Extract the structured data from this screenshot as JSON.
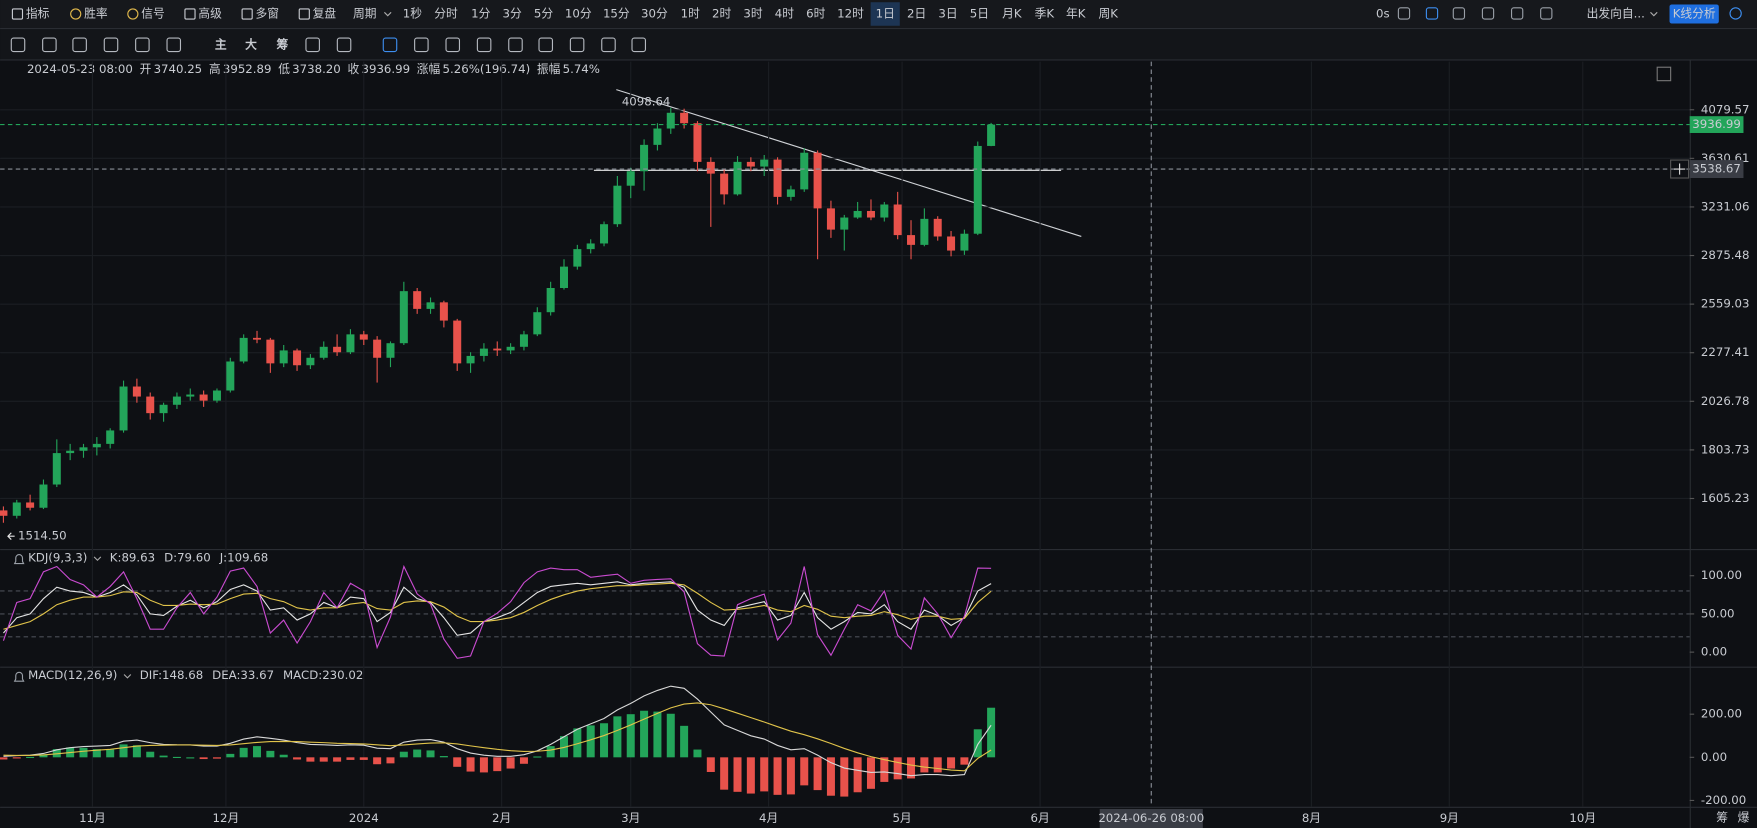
{
  "toolbar": {
    "left": [
      "指标",
      "胜率",
      "信号",
      "高级",
      "多窗",
      "复盘",
      "周期"
    ],
    "periods": [
      "1秒",
      "分时",
      "1分",
      "3分",
      "5分",
      "10分",
      "15分",
      "30分",
      "1时",
      "2时",
      "3时",
      "4时",
      "6时",
      "12时",
      "1日",
      "2日",
      "3日",
      "5日",
      "月K",
      "季K",
      "年K",
      "周K"
    ],
    "active_period": 14,
    "right": [
      "0s",
      "出发向自...",
      "K线分析"
    ],
    "drawing": [
      "主",
      "大",
      "筹"
    ],
    "corner": [
      "筹",
      "爆"
    ]
  },
  "info": {
    "time": "2024-05-23 08:00",
    "fields": [
      {
        "label": "开",
        "value": "3740.25"
      },
      {
        "label": "高",
        "value": "3952.89"
      },
      {
        "label": "低",
        "value": "3738.20"
      },
      {
        "label": "收",
        "value": "3936.99"
      },
      {
        "label": "涨幅",
        "value": "5.26%(196.74)"
      },
      {
        "label": "振幅",
        "value": "5.74%"
      }
    ]
  },
  "chart_data": [
    {
      "type": "candlestick",
      "log": true,
      "up_color": "#23a55a",
      "down_color": "#e8524b",
      "xlim": [
        -0.25,
        126.34
      ],
      "ylim": [
        1422,
        4579
      ],
      "yticks": [
        1605.23,
        1803.73,
        2026.78,
        2277.41,
        2559.03,
        2875.48,
        3231.06,
        3630.61,
        4079.57
      ],
      "xticks": [
        {
          "value": 6.67,
          "label": "11月"
        },
        {
          "value": 16.67,
          "label": "12月"
        },
        {
          "value": 27,
          "label": "2024"
        },
        {
          "value": 37.33,
          "label": "2月"
        },
        {
          "value": 47,
          "label": "3月"
        },
        {
          "value": 57.33,
          "label": "4月"
        },
        {
          "value": 67.33,
          "label": "5月"
        },
        {
          "value": 77.67,
          "label": "6月"
        },
        {
          "value": 98,
          "label": "8月"
        },
        {
          "value": 108.33,
          "label": "9月"
        },
        {
          "value": 118.33,
          "label": "10月"
        }
      ],
      "extreme_labels": {
        "high": "4098.64",
        "low": "1514.50"
      },
      "crosshair": {
        "x": 86,
        "y": 3538.67,
        "x_label": "2024-06-26 08:00"
      },
      "values": [
        [
          1560,
          1575,
          1514.5,
          1540
        ],
        [
          1540,
          1600,
          1530,
          1590
        ],
        [
          1590,
          1620,
          1560,
          1570
        ],
        [
          1570,
          1680,
          1565,
          1660
        ],
        [
          1660,
          1850,
          1650,
          1790
        ],
        [
          1790,
          1830,
          1760,
          1800
        ],
        [
          1800,
          1830,
          1770,
          1815
        ],
        [
          1815,
          1860,
          1780,
          1830
        ],
        [
          1830,
          1900,
          1810,
          1890
        ],
        [
          1890,
          2130,
          1880,
          2100
        ],
        [
          2100,
          2140,
          2020,
          2050
        ],
        [
          2050,
          2070,
          1940,
          1970
        ],
        [
          1970,
          2020,
          1930,
          2010
        ],
        [
          2010,
          2070,
          1990,
          2050
        ],
        [
          2050,
          2090,
          2030,
          2060
        ],
        [
          2060,
          2080,
          2000,
          2030
        ],
        [
          2030,
          2090,
          2020,
          2080
        ],
        [
          2080,
          2250,
          2070,
          2230
        ],
        [
          2230,
          2380,
          2220,
          2360
        ],
        [
          2360,
          2400,
          2330,
          2350
        ],
        [
          2350,
          2360,
          2170,
          2220
        ],
        [
          2220,
          2320,
          2200,
          2290
        ],
        [
          2290,
          2300,
          2180,
          2210
        ],
        [
          2210,
          2270,
          2190,
          2250
        ],
        [
          2250,
          2340,
          2240,
          2310
        ],
        [
          2310,
          2380,
          2260,
          2280
        ],
        [
          2280,
          2410,
          2270,
          2380
        ],
        [
          2380,
          2400,
          2320,
          2350
        ],
        [
          2350,
          2370,
          2120,
          2250
        ],
        [
          2250,
          2340,
          2200,
          2330
        ],
        [
          2330,
          2700,
          2320,
          2640
        ],
        [
          2640,
          2660,
          2500,
          2530
        ],
        [
          2530,
          2600,
          2500,
          2570
        ],
        [
          2570,
          2580,
          2420,
          2460
        ],
        [
          2460,
          2470,
          2180,
          2220
        ],
        [
          2220,
          2280,
          2170,
          2260
        ],
        [
          2260,
          2330,
          2230,
          2300
        ],
        [
          2300,
          2340,
          2260,
          2290
        ],
        [
          2290,
          2330,
          2270,
          2310
        ],
        [
          2310,
          2400,
          2290,
          2380
        ],
        [
          2380,
          2540,
          2370,
          2510
        ],
        [
          2510,
          2700,
          2490,
          2660
        ],
        [
          2660,
          2850,
          2650,
          2800
        ],
        [
          2800,
          2950,
          2780,
          2920
        ],
        [
          2920,
          2990,
          2890,
          2960
        ],
        [
          2960,
          3120,
          2940,
          3100
        ],
        [
          3100,
          3480,
          3080,
          3400
        ],
        [
          3400,
          3550,
          3300,
          3520
        ],
        [
          3520,
          3800,
          3360,
          3750
        ],
        [
          3750,
          3950,
          3700,
          3900
        ],
        [
          3900,
          4098.64,
          3850,
          4050
        ],
        [
          4050,
          4090,
          3900,
          3950
        ],
        [
          3950,
          3970,
          3520,
          3600
        ],
        [
          3600,
          3640,
          3080,
          3500
        ],
        [
          3500,
          3540,
          3250,
          3330
        ],
        [
          3330,
          3650,
          3320,
          3600
        ],
        [
          3600,
          3640,
          3520,
          3560
        ],
        [
          3560,
          3660,
          3480,
          3620
        ],
        [
          3620,
          3640,
          3250,
          3310
        ],
        [
          3310,
          3400,
          3280,
          3370
        ],
        [
          3370,
          3720,
          3350,
          3680
        ],
        [
          3680,
          3700,
          2850,
          3220
        ],
        [
          3220,
          3280,
          3000,
          3060
        ],
        [
          3060,
          3170,
          2910,
          3150
        ],
        [
          3150,
          3270,
          3140,
          3200
        ],
        [
          3200,
          3290,
          3130,
          3150
        ],
        [
          3150,
          3270,
          3120,
          3250
        ],
        [
          3250,
          3350,
          2990,
          3020
        ],
        [
          3020,
          3130,
          2850,
          2950
        ],
        [
          2950,
          3220,
          2940,
          3140
        ],
        [
          3140,
          3160,
          2980,
          3010
        ],
        [
          3010,
          3050,
          2870,
          2910
        ],
        [
          2910,
          3060,
          2880,
          3030
        ],
        [
          3030,
          3780,
          3020,
          3740.25
        ],
        [
          3740.25,
          3952.89,
          3738.2,
          3936.99
        ]
      ]
    },
    {
      "type": "line",
      "indicator": "KDJ(9,3,3)",
      "xlim": [
        -0.25,
        126.34
      ],
      "ylim": [
        -19,
        132
      ],
      "yticks": [
        {
          "value": 0,
          "label": "0.00"
        },
        {
          "value": 50,
          "label": "50.00"
        },
        {
          "value": 100,
          "label": "100.00"
        }
      ],
      "guide_lines": [
        80,
        50,
        20
      ],
      "series": [
        {
          "name": "K",
          "legend": "K:89.63",
          "color": "#e4e4e4",
          "values": [
            25,
            45,
            50,
            70,
            85,
            80,
            78,
            72,
            78,
            88,
            75,
            50,
            48,
            60,
            68,
            58,
            66,
            82,
            88,
            80,
            55,
            58,
            42,
            50,
            65,
            58,
            72,
            70,
            40,
            52,
            85,
            70,
            65,
            45,
            22,
            25,
            40,
            45,
            52,
            65,
            78,
            86,
            88,
            90,
            88,
            90,
            92,
            88,
            90,
            91,
            92,
            85,
            55,
            42,
            35,
            58,
            62,
            66,
            42,
            48,
            78,
            45,
            30,
            40,
            52,
            50,
            62,
            40,
            30,
            55,
            48,
            35,
            45,
            80,
            89.63
          ]
        },
        {
          "name": "D",
          "legend": "D:79.60",
          "color": "#e0c34a",
          "values": [
            30,
            35,
            40,
            50,
            62,
            68,
            72,
            72,
            74,
            79,
            78,
            68,
            61,
            61,
            63,
            62,
            63,
            70,
            76,
            77,
            70,
            66,
            58,
            55,
            58,
            58,
            63,
            65,
            57,
            55,
            65,
            67,
            66,
            59,
            47,
            40,
            40,
            42,
            45,
            52,
            61,
            69,
            75,
            80,
            83,
            85,
            87,
            87,
            88,
            89,
            90,
            88,
            77,
            65,
            55,
            56,
            58,
            61,
            55,
            53,
            61,
            56,
            47,
            45,
            47,
            48,
            53,
            49,
            43,
            47,
            47,
            43,
            44,
            65,
            79.6
          ]
        },
        {
          "name": "J",
          "legend": "J:109.68",
          "color": "#c94bd0",
          "values": [
            15,
            65,
            70,
            105,
            112,
            95,
            88,
            72,
            86,
            105,
            70,
            30,
            30,
            58,
            78,
            50,
            72,
            106,
            110,
            86,
            25,
            42,
            12,
            40,
            78,
            58,
            90,
            80,
            6,
            46,
            112,
            76,
            63,
            17,
            -8,
            -5,
            40,
            51,
            66,
            91,
            105,
            110,
            108,
            108,
            98,
            100,
            102,
            90,
            94,
            95,
            96,
            79,
            11,
            -4,
            -5,
            62,
            70,
            76,
            16,
            38,
            112,
            23,
            -4,
            30,
            62,
            54,
            80,
            22,
            4,
            71,
            50,
            19,
            47,
            110,
            109.68
          ]
        }
      ]
    },
    {
      "type": "macd",
      "indicator": "MACD(12,26,9)",
      "xlim": [
        -0.25,
        126.34
      ],
      "ylim": [
        -229,
        410
      ],
      "yticks": [
        {
          "value": -200,
          "label": "-200.00"
        },
        {
          "value": 0,
          "label": "0.00"
        },
        {
          "value": 200,
          "label": "200.00"
        }
      ],
      "up_color": "#23a55a",
      "down_color": "#e8524b",
      "series": [
        {
          "name": "DIF",
          "legend": "DIF:148.68",
          "style": "line",
          "color": "#d8d8d8",
          "values": [
            5,
            8,
            10,
            18,
            35,
            45,
            50,
            52,
            55,
            75,
            80,
            68,
            60,
            58,
            57,
            52,
            52,
            65,
            85,
            95,
            88,
            80,
            68,
            60,
            58,
            55,
            58,
            56,
            42,
            40,
            70,
            80,
            82,
            70,
            40,
            20,
            10,
            5,
            5,
            12,
            30,
            60,
            95,
            130,
            155,
            180,
            220,
            250,
            285,
            310,
            330,
            320,
            270,
            210,
            150,
            125,
            100,
            85,
            55,
            35,
            40,
            10,
            -25,
            -50,
            -60,
            -70,
            -68,
            -75,
            -85,
            -80,
            -80,
            -85,
            -80,
            60,
            148.68
          ]
        },
        {
          "name": "DEA",
          "legend": "DEA:33.67",
          "style": "line",
          "color": "#e0c34a",
          "values": [
            10,
            9,
            9,
            11,
            16,
            22,
            28,
            33,
            37,
            45,
            52,
            55,
            56,
            57,
            57,
            56,
            55,
            57,
            63,
            69,
            73,
            74,
            73,
            70,
            68,
            65,
            64,
            62,
            58,
            54,
            57,
            62,
            66,
            67,
            62,
            53,
            45,
            37,
            31,
            27,
            28,
            34,
            46,
            63,
            81,
            101,
            125,
            150,
            177,
            204,
            229,
            247,
            252,
            244,
            225,
            205,
            184,
            164,
            142,
            121,
            105,
            86,
            64,
            41,
            21,
            3,
            -11,
            -24,
            -36,
            -45,
            -52,
            -59,
            -63,
            -5,
            33.67
          ]
        },
        {
          "name": "MACD",
          "legend": "MACD:230.02",
          "style": "bar",
          "color": "#23a55a",
          "values": [
            -10,
            -2,
            2,
            14,
            38,
            46,
            44,
            38,
            36,
            60,
            56,
            26,
            8,
            2,
            0,
            -8,
            -6,
            16,
            44,
            52,
            30,
            12,
            -10,
            -20,
            -20,
            -20,
            -12,
            -12,
            -32,
            -28,
            26,
            36,
            32,
            6,
            -44,
            -66,
            -70,
            -64,
            -52,
            -30,
            4,
            52,
            98,
            134,
            148,
            158,
            190,
            200,
            216,
            212,
            202,
            146,
            36,
            -68,
            -150,
            -160,
            -168,
            -158,
            -174,
            -172,
            -130,
            -152,
            -178,
            -182,
            -162,
            -146,
            -114,
            -102,
            -98,
            -70,
            -70,
            -52,
            -34,
            130,
            230.02
          ]
        }
      ]
    }
  ]
}
